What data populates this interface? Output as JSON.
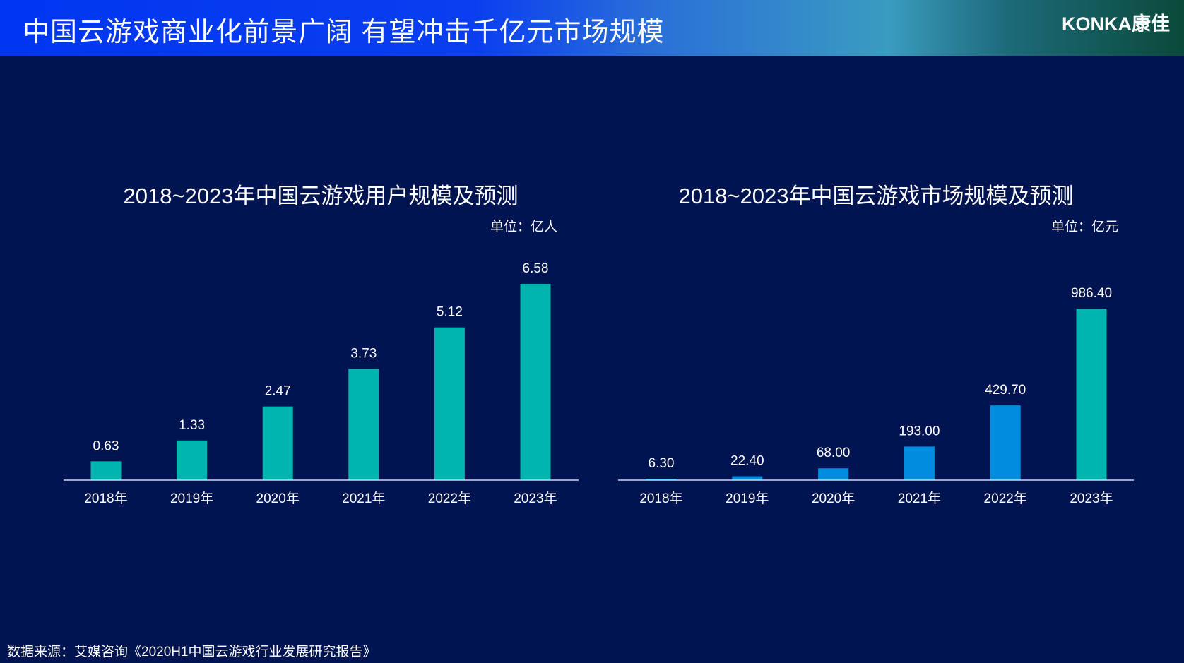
{
  "header": {
    "title": "中国云游戏商业化前景广阔 有望冲击千亿元市场规模",
    "logo": "KONKA康佳"
  },
  "colors": {
    "background": "#001452",
    "teal": "#00b5ad",
    "blue": "#008de0"
  },
  "chart_data": [
    {
      "type": "bar",
      "title": "2018~2023年中国云游戏用户规模及预测",
      "unit": "单位：亿人",
      "categories": [
        "2018年",
        "2019年",
        "2020年",
        "2021年",
        "2022年",
        "2023年"
      ],
      "values": [
        0.63,
        1.33,
        2.47,
        3.73,
        5.12,
        6.58
      ],
      "labels": [
        "0.63",
        "1.33",
        "2.47",
        "3.73",
        "5.12",
        "6.58"
      ],
      "bar_colors": [
        "#00b5ad",
        "#00b5ad",
        "#00b5ad",
        "#00b5ad",
        "#00b5ad",
        "#00b5ad"
      ],
      "ylim": [
        0,
        6.58
      ]
    },
    {
      "type": "bar",
      "title": "2018~2023年中国云游戏市场规模及预测",
      "unit": "单位：亿元",
      "categories": [
        "2018年",
        "2019年",
        "2020年",
        "2021年",
        "2022年",
        "2023年"
      ],
      "values": [
        6.3,
        22.4,
        68.0,
        193.0,
        429.7,
        986.4
      ],
      "labels": [
        "6.30",
        "22.40",
        "68.00",
        "193.00",
        "429.70",
        "986.40"
      ],
      "bar_colors": [
        "#008de0",
        "#008de0",
        "#008de0",
        "#008de0",
        "#008de0",
        "#00b5ad"
      ],
      "ylim": [
        0,
        986.4
      ]
    }
  ],
  "footer": {
    "source": "数据来源：艾媒咨询《2020H1中国云游戏行业发展研究报告》"
  }
}
